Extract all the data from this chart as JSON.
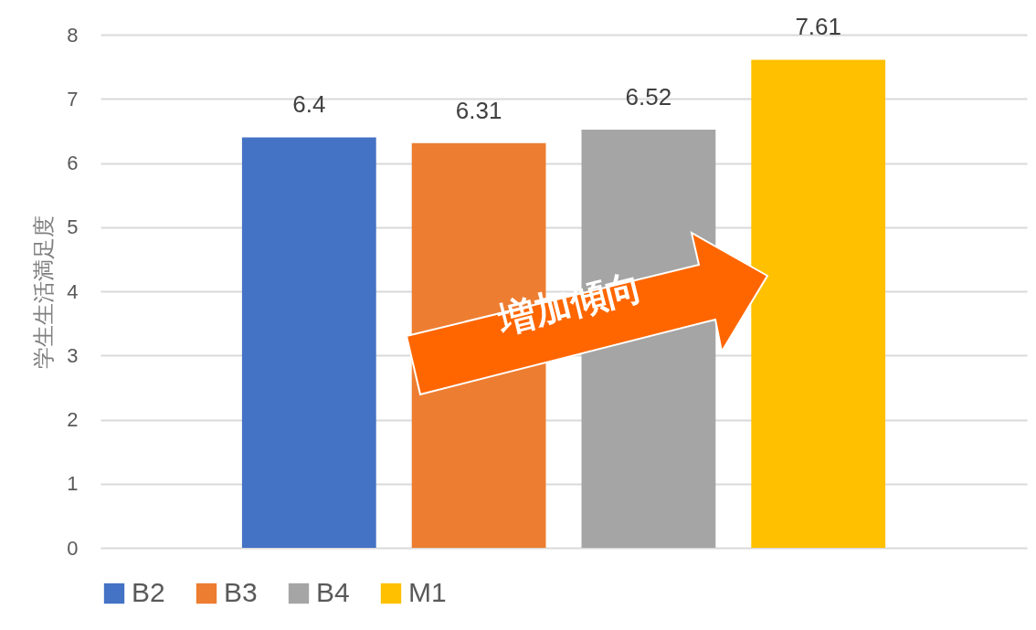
{
  "chart_data": {
    "type": "bar",
    "categories": [
      null
    ],
    "ylabel": "学生生活満足度",
    "ylim": [
      0,
      8
    ],
    "yticks": [
      0,
      1,
      2,
      3,
      4,
      5,
      6,
      7,
      8
    ],
    "grid": "y",
    "legend": "bottom",
    "data_labels": true,
    "tick_labels": "y",
    "annotations": [
      "増加傾向"
    ],
    "series": [
      {
        "name": "B2",
        "color": "#4472c4",
        "values": [
          6.4
        ]
      },
      {
        "name": "B3",
        "color": "#ed7d31",
        "values": [
          6.31
        ]
      },
      {
        "name": "B4",
        "color": "#a5a5a5",
        "values": [
          6.52
        ]
      },
      {
        "name": "M1",
        "color": "#ffc000",
        "values": [
          7.61
        ]
      }
    ]
  }
}
